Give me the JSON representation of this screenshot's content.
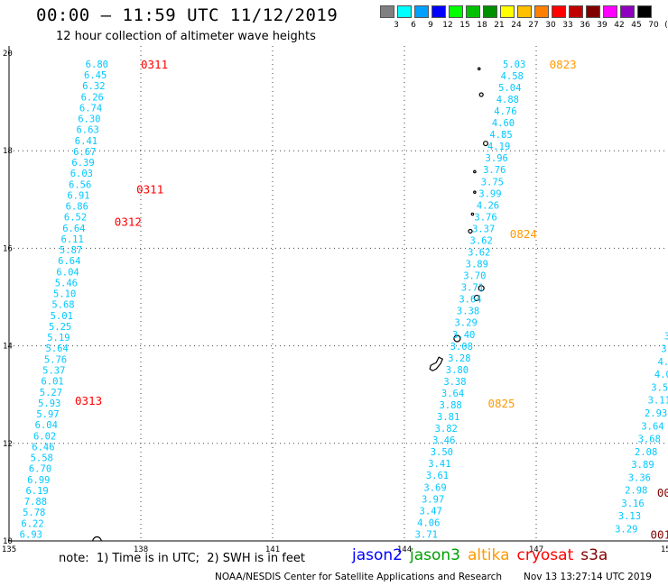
{
  "header": {
    "title": "00:00 — 11:59 UTC 11/12/2019",
    "subtitle": "12 hour collection of altimeter wave heights"
  },
  "swh_scale": {
    "colors": [
      "#808080",
      "#00ffff",
      "#00a0ff",
      "#0000ff",
      "#00ff00",
      "#00c000",
      "#009000",
      "#ffff00",
      "#ffc000",
      "#ff8000",
      "#ff0000",
      "#c00000",
      "#800000",
      "#ff00ff",
      "#9000c0",
      "#000000"
    ],
    "labels": [
      "3",
      "6",
      "9",
      "12",
      "15",
      "18",
      "21",
      "24",
      "27",
      "30",
      "33",
      "36",
      "39",
      "42",
      "45",
      "70",
      "(ft)"
    ]
  },
  "footer": {
    "note": "note:  1) Time is in UTC;  2) SWH is in feet",
    "credit": "NOAA/NESDIS Center for Satellite Applications and Research",
    "timestamp": "Nov 13 13:27:14 UTC 2019"
  },
  "legend": [
    {
      "name": "jason2",
      "color": "#0000ff"
    },
    {
      "name": "jason3",
      "color": "#00a000"
    },
    {
      "name": "altika",
      "color": "#ff9900"
    },
    {
      "name": "cryosat",
      "color": "#ff0000"
    },
    {
      "name": "s3a",
      "color": "#800000"
    }
  ],
  "chart_data": {
    "type": "scatter",
    "xlim": [
      135,
      150
    ],
    "ylim": [
      10,
      20
    ],
    "xticks": [
      "135",
      "138",
      "141",
      "144",
      "147",
      "150"
    ],
    "xtick_values": [
      135,
      138,
      141,
      144,
      147,
      150
    ],
    "yticks": [
      "10",
      "12",
      "14",
      "16",
      "18",
      "20"
    ],
    "ytick_values": [
      10,
      12,
      14,
      16,
      18,
      20
    ],
    "grid": true,
    "track_color": "#00c8ff",
    "tracks": [
      {
        "lon": [
          137.0,
          135.5
        ],
        "lat": [
          19.78,
          10.14
        ],
        "values": [
          "6.80",
          "6.45",
          "6.32",
          "6.26",
          "6.74",
          "6.30",
          "6.63",
          "6.41",
          "6.67",
          "6.39",
          "6.03",
          "6.56",
          "6.91",
          "6.86",
          "6.52",
          "6.64",
          "6.11",
          "5.87",
          "6.64",
          "6.04",
          "5.46",
          "5.10",
          "5.68",
          "5.01",
          "5.25",
          "5.19",
          "5.64",
          "5.76",
          "5.37",
          "6.01",
          "5.27",
          "5.93",
          "5.97",
          "6.04",
          "6.02",
          "6.46",
          "5.58",
          "6.70",
          "6.99",
          "6.19",
          "7.88",
          "5.78",
          "6.22",
          "6.93"
        ]
      },
      {
        "lon": [
          146.5,
          144.5
        ],
        "lat": [
          19.78,
          10.14
        ],
        "values": [
          "5.03",
          "4.58",
          "5.04",
          "4.88",
          "4.76",
          "4.60",
          "4.85",
          "4.19",
          "3.96",
          "3.76",
          "3.75",
          "3.99",
          "4.26",
          "3.76",
          "3.37",
          "3.62",
          "3.62",
          "3.89",
          "3.70",
          "3.71",
          "3.64",
          "3.38",
          "3.29",
          "3.40",
          "3.08",
          "3.28",
          "3.80",
          "3.38",
          "3.64",
          "3.88",
          "3.81",
          "3.82",
          "3.46",
          "3.50",
          "3.41",
          "3.61",
          "3.69",
          "3.97",
          "3.47",
          "4.06",
          "3.71"
        ]
      },
      {
        "lon": [
          150.4,
          149.05
        ],
        "lat": [
          15.0,
          10.25
        ],
        "values": [
          "4.3",
          "3.8",
          "3.54",
          "3.18",
          "3.91",
          "4.33",
          "4.05",
          "3.55",
          "3.11",
          "2.93",
          "3.64",
          "3.68",
          "2.08",
          "3.89",
          "3.36",
          "2.98",
          "3.16",
          "3.13",
          "3.29"
        ]
      }
    ],
    "pass_labels": [
      {
        "text": "0311",
        "lon": 138.0,
        "lat": 19.78,
        "color": "#ff0000"
      },
      {
        "text": "0311",
        "lon": 137.9,
        "lat": 17.22,
        "color": "#ff0000"
      },
      {
        "text": "0312",
        "lon": 137.4,
        "lat": 16.55,
        "color": "#ff0000"
      },
      {
        "text": "0313",
        "lon": 136.5,
        "lat": 12.88,
        "color": "#ff0000"
      },
      {
        "text": "0823",
        "lon": 147.3,
        "lat": 19.78,
        "color": "#ff9900"
      },
      {
        "text": "0824",
        "lon": 146.4,
        "lat": 16.3,
        "color": "#ff9900"
      },
      {
        "text": "0825",
        "lon": 145.9,
        "lat": 12.83,
        "color": "#ff9900"
      },
      {
        "text": "00",
        "lon": 149.75,
        "lat": 11.0,
        "color": "#800000"
      },
      {
        "text": "001",
        "lon": 149.6,
        "lat": 10.14,
        "color": "#800000"
      }
    ]
  }
}
